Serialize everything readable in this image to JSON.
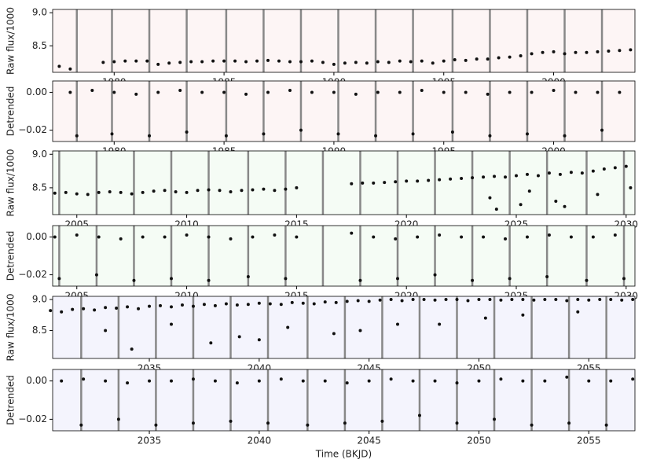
{
  "chart_data": [
    {
      "type": "scatter",
      "ylabel": "Raw flux/1000",
      "background": "#fdf5f5",
      "point_color": "#111111",
      "transit_color": "#888888",
      "xlim": [
        1977.2,
        2003.7
      ],
      "ylim": [
        8.1,
        9.05
      ],
      "xticks": [
        1980,
        1985,
        1990,
        1995,
        2000
      ],
      "yticks": [
        8.5,
        {
          "value": 9.0,
          "label": "9.0"
        }
      ],
      "transits": [
        1978.3,
        1979.9,
        1981.6,
        1983.3,
        1985.1,
        1986.8,
        1988.5,
        1990.2,
        1991.9,
        1993.6,
        1995.4,
        1997.1,
        1998.8,
        2000.5,
        2002.2
      ],
      "x": [
        1977.5,
        1978.0,
        1979.5,
        1980.0,
        1980.5,
        1981.0,
        1981.5,
        1982.0,
        1982.5,
        1983.0,
        1983.5,
        1984.0,
        1984.5,
        1985.0,
        1985.5,
        1986.0,
        1986.5,
        1987.0,
        1987.5,
        1988.0,
        1988.5,
        1989.0,
        1989.5,
        1990.0,
        1990.5,
        1991.0,
        1991.5,
        1992.0,
        1992.5,
        1993.0,
        1993.5,
        1994.0,
        1994.5,
        1995.0,
        1995.5,
        1996.0,
        1996.5,
        1997.0,
        1997.5,
        1998.0,
        1998.5,
        1999.0,
        1999.5,
        2000.0,
        2000.5,
        2001.0,
        2001.5,
        2002.0,
        2002.5,
        2003.0,
        2003.5
      ],
      "values": [
        8.19,
        8.15,
        8.25,
        8.26,
        8.27,
        8.27,
        8.27,
        8.22,
        8.24,
        8.25,
        8.26,
        8.26,
        8.27,
        8.27,
        8.27,
        8.26,
        8.27,
        8.28,
        8.27,
        8.26,
        8.26,
        8.27,
        8.25,
        8.22,
        8.24,
        8.25,
        8.24,
        8.26,
        8.25,
        8.27,
        8.26,
        8.27,
        8.24,
        8.27,
        8.29,
        8.28,
        8.3,
        8.3,
        8.32,
        8.33,
        8.35,
        8.38,
        8.4,
        8.41,
        8.38,
        8.4,
        8.4,
        8.41,
        8.42,
        8.43,
        8.44
      ]
    },
    {
      "type": "scatter",
      "ylabel": "Detrended",
      "background": "#fdf5f5",
      "point_color": "#111111",
      "transit_color": "#888888",
      "xlim": [
        1977.2,
        2003.7
      ],
      "ylim": [
        -0.026,
        0.006
      ],
      "xticks": [
        1980,
        1985,
        1990,
        1995,
        2000
      ],
      "yticks": [
        {
          "value": 0,
          "label": "0.00"
        },
        {
          "value": -0.02,
          "label": "−0.02"
        }
      ],
      "transits": [
        1978.3,
        1979.9,
        1981.6,
        1983.3,
        1985.1,
        1986.8,
        1988.5,
        1990.2,
        1991.9,
        1993.6,
        1995.4,
        1997.1,
        1998.8,
        2000.5,
        2002.2
      ],
      "x": [
        1978,
        1979,
        1980,
        1981,
        1982,
        1983,
        1984,
        1985,
        1986,
        1987,
        1988,
        1989,
        1990,
        1991,
        1992,
        1993,
        1994,
        1995,
        1996,
        1997,
        1998,
        1999,
        2000,
        2001,
        2002,
        2003,
        1978.3,
        1979.9,
        1981.6,
        1983.3,
        1985.1,
        1986.8,
        1988.5,
        1990.2,
        1991.9,
        1993.6,
        1995.4,
        1997.1,
        1998.8,
        2000.5,
        2002.2
      ],
      "values": [
        0,
        0.001,
        0,
        -0.001,
        0,
        0.001,
        0,
        0,
        -0.001,
        0,
        0.001,
        0,
        0,
        -0.001,
        0,
        0,
        0.001,
        0,
        0,
        -0.001,
        0,
        0,
        0.001,
        0,
        0,
        0,
        -0.023,
        -0.022,
        -0.023,
        -0.021,
        -0.023,
        -0.022,
        -0.02,
        -0.022,
        -0.023,
        -0.022,
        -0.021,
        -0.023,
        -0.022,
        -0.023,
        -0.02
      ]
    },
    {
      "type": "scatter",
      "ylabel": "Raw flux/1000",
      "background": "#f5fcf5",
      "point_color": "#111111",
      "transit_color": "#888888",
      "xlim": [
        2003.9,
        2030.4
      ],
      "ylim": [
        8.1,
        9.05
      ],
      "xticks": [
        2005,
        2010,
        2015,
        2020,
        2025,
        2030
      ],
      "yticks": [
        8.5,
        {
          "value": 9.0,
          "label": "9.0"
        }
      ],
      "transits": [
        2004.2,
        2005.9,
        2007.6,
        2009.3,
        2011.0,
        2012.8,
        2014.5,
        2016.2,
        2017.9,
        2019.6,
        2021.3,
        2023.0,
        2024.7,
        2026.4,
        2028.2,
        2029.9
      ],
      "x": [
        2004.0,
        2004.5,
        2005.0,
        2005.5,
        2006.0,
        2006.5,
        2007.0,
        2007.5,
        2008.0,
        2008.5,
        2009.0,
        2009.5,
        2010.0,
        2010.5,
        2011.0,
        2011.5,
        2012.0,
        2012.5,
        2013.0,
        2013.5,
        2014.0,
        2014.5,
        2015.0,
        2017.5,
        2018.0,
        2018.5,
        2019.0,
        2019.5,
        2020.0,
        2020.5,
        2021.0,
        2021.5,
        2022.0,
        2022.5,
        2023.0,
        2023.5,
        2024.0,
        2024.5,
        2025.0,
        2025.5,
        2026.0,
        2026.5,
        2027.0,
        2027.5,
        2028.0,
        2028.5,
        2029.0,
        2029.5,
        2030.0,
        2023.8,
        2024.1,
        2025.2,
        2025.6,
        2026.8,
        2027.2,
        2028.7,
        2030.2
      ],
      "values": [
        8.42,
        8.43,
        8.41,
        8.4,
        8.43,
        8.44,
        8.43,
        8.41,
        8.43,
        8.45,
        8.46,
        8.44,
        8.43,
        8.46,
        8.47,
        8.46,
        8.44,
        8.46,
        8.47,
        8.48,
        8.46,
        8.48,
        8.5,
        8.56,
        8.57,
        8.57,
        8.58,
        8.59,
        8.6,
        8.6,
        8.61,
        8.62,
        8.63,
        8.64,
        8.65,
        8.66,
        8.67,
        8.66,
        8.68,
        8.7,
        8.68,
        8.72,
        8.7,
        8.73,
        8.72,
        8.75,
        8.78,
        8.8,
        8.82,
        8.35,
        8.18,
        8.25,
        8.45,
        8.3,
        8.22,
        8.4,
        8.5
      ]
    },
    {
      "type": "scatter",
      "ylabel": "Detrended",
      "background": "#f5fcf5",
      "point_color": "#111111",
      "transit_color": "#888888",
      "xlim": [
        2003.9,
        2030.4
      ],
      "ylim": [
        -0.026,
        0.006
      ],
      "xticks": [
        2005,
        2010,
        2015,
        2020,
        2025,
        2030
      ],
      "yticks": [
        {
          "value": 0,
          "label": "0.00"
        },
        {
          "value": -0.02,
          "label": "−0.02"
        }
      ],
      "transits": [
        2004.2,
        2005.9,
        2007.6,
        2009.3,
        2011.0,
        2012.8,
        2014.5,
        2016.2,
        2017.9,
        2019.6,
        2021.3,
        2023.0,
        2024.7,
        2026.4,
        2028.2,
        2029.9
      ],
      "x": [
        2004,
        2005,
        2006,
        2007,
        2008,
        2009,
        2010,
        2011,
        2012,
        2013,
        2014,
        2015,
        2017.5,
        2018.5,
        2019.5,
        2020.5,
        2021.5,
        2022.5,
        2023.5,
        2024.5,
        2025.5,
        2026.5,
        2027.5,
        2028.5,
        2029.5,
        2004.2,
        2005.9,
        2007.6,
        2009.3,
        2011.0,
        2012.8,
        2014.5,
        2017.9,
        2019.6,
        2021.3,
        2023.0,
        2024.7,
        2026.4,
        2028.2,
        2029.9
      ],
      "values": [
        0,
        0.001,
        0,
        -0.001,
        0,
        0,
        0.001,
        0,
        -0.001,
        0,
        0.001,
        0,
        0.002,
        0,
        -0.001,
        0,
        0.001,
        0,
        0,
        -0.001,
        0,
        0.001,
        0,
        0,
        0.001,
        -0.022,
        -0.02,
        -0.023,
        -0.022,
        -0.023,
        -0.021,
        -0.022,
        -0.023,
        -0.022,
        -0.02,
        -0.023,
        -0.022,
        -0.021,
        -0.023,
        -0.022
      ]
    },
    {
      "type": "scatter",
      "ylabel": "Raw flux/1000",
      "background": "#f4f4fd",
      "point_color": "#111111",
      "transit_color": "#888888",
      "xlim": [
        2030.6,
        2057.1
      ],
      "ylim": [
        8.05,
        9.05
      ],
      "xticks": [
        2035,
        2040,
        2045,
        2050,
        2055
      ],
      "yticks": [
        8.5,
        {
          "value": 9.0,
          "label": "9.0"
        }
      ],
      "transits": [
        2031.9,
        2033.6,
        2035.3,
        2037.0,
        2038.7,
        2040.4,
        2042.2,
        2043.9,
        2045.6,
        2047.3,
        2049.0,
        2050.7,
        2052.4,
        2054.1,
        2055.8
      ],
      "x": [
        2030.5,
        2031.0,
        2031.5,
        2032.0,
        2032.5,
        2033.0,
        2033.5,
        2034.0,
        2034.5,
        2035.0,
        2035.5,
        2036.0,
        2036.5,
        2037.0,
        2037.5,
        2038.0,
        2038.5,
        2039.0,
        2039.5,
        2040.0,
        2040.5,
        2041.0,
        2041.5,
        2042.0,
        2042.5,
        2043.0,
        2043.5,
        2044.0,
        2044.5,
        2045.0,
        2045.5,
        2046.0,
        2046.5,
        2047.0,
        2047.5,
        2048.0,
        2048.5,
        2049.0,
        2049.5,
        2050.0,
        2050.5,
        2051.0,
        2051.5,
        2052.0,
        2052.5,
        2053.0,
        2053.5,
        2054.0,
        2054.5,
        2055.0,
        2055.5,
        2056.0,
        2056.5,
        2057.0,
        2033.0,
        2034.2,
        2036.0,
        2037.8,
        2039.1,
        2040.0,
        2041.3,
        2043.4,
        2044.6,
        2046.3,
        2048.2,
        2050.3,
        2052.0,
        2054.5
      ],
      "values": [
        8.82,
        8.8,
        8.84,
        8.85,
        8.83,
        8.87,
        8.86,
        8.88,
        8.85,
        8.89,
        8.9,
        8.88,
        8.91,
        8.89,
        8.92,
        8.9,
        8.93,
        8.91,
        8.92,
        8.94,
        8.93,
        8.92,
        8.95,
        8.94,
        8.93,
        8.96,
        8.95,
        8.97,
        8.98,
        8.97,
        8.99,
        9.0,
        8.98,
        9.0,
        9.0,
        8.99,
        9.0,
        9.0,
        8.98,
        9.0,
        9.0,
        8.99,
        9.0,
        9.0,
        8.99,
        9.0,
        9.0,
        8.98,
        9.0,
        8.99,
        9.0,
        9.0,
        8.99,
        9.0,
        8.5,
        8.2,
        8.6,
        8.3,
        8.4,
        8.35,
        8.55,
        8.45,
        8.5,
        8.6,
        8.6,
        8.7,
        8.75,
        8.8
      ]
    },
    {
      "type": "scatter",
      "ylabel": "Detrended",
      "xlabel": "Time (BKJD)",
      "background": "#f4f4fd",
      "point_color": "#111111",
      "transit_color": "#888888",
      "xlim": [
        2030.6,
        2057.1
      ],
      "ylim": [
        -0.026,
        0.006
      ],
      "xticks": [
        2035,
        2040,
        2045,
        2050,
        2055
      ],
      "yticks": [
        {
          "value": 0,
          "label": "0.00"
        },
        {
          "value": -0.02,
          "label": "−0.02"
        }
      ],
      "transits": [
        2031.9,
        2033.6,
        2035.3,
        2037.0,
        2038.7,
        2040.4,
        2042.2,
        2043.9,
        2045.6,
        2047.3,
        2049.0,
        2050.7,
        2052.4,
        2054.1,
        2055.8
      ],
      "x": [
        2031,
        2032,
        2033,
        2034,
        2035,
        2036,
        2037,
        2038,
        2039,
        2040,
        2041,
        2042,
        2043,
        2044,
        2045,
        2046,
        2047,
        2048,
        2049,
        2050,
        2051,
        2052,
        2053,
        2054,
        2055,
        2056,
        2057,
        2031.9,
        2033.6,
        2035.3,
        2037.0,
        2038.7,
        2040.4,
        2042.2,
        2043.9,
        2045.6,
        2047.3,
        2049.0,
        2050.7,
        2052.4,
        2054.1,
        2055.8
      ],
      "values": [
        0,
        0.001,
        0,
        -0.001,
        0,
        0,
        0.001,
        0,
        -0.001,
        0,
        0.001,
        0,
        0,
        -0.001,
        0,
        0.001,
        0,
        0,
        -0.001,
        0,
        0.001,
        0,
        0,
        0.002,
        0,
        0,
        0.001,
        -0.023,
        -0.02,
        -0.023,
        -0.022,
        -0.021,
        -0.022,
        -0.023,
        -0.022,
        -0.021,
        -0.018,
        -0.022,
        -0.02,
        -0.023,
        -0.022,
        -0.023
      ]
    }
  ]
}
